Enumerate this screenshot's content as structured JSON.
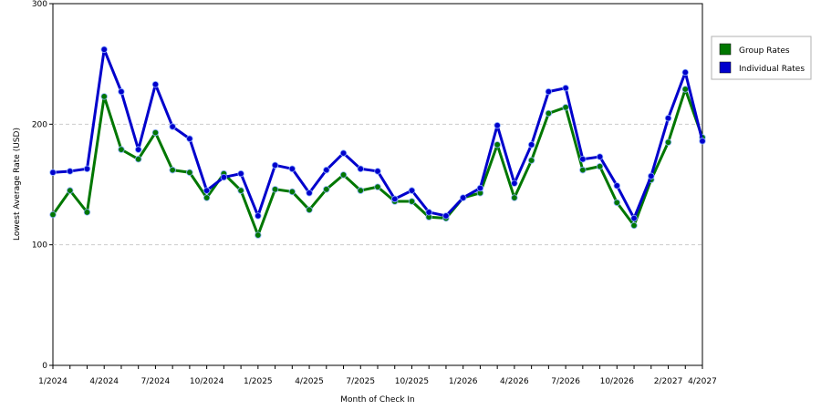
{
  "chart_data": {
    "type": "line",
    "title": "",
    "xlabel": "Month of Check In",
    "ylabel": "Lowest Average Rate (USD)",
    "ylim": [
      0,
      300
    ],
    "y_ticks": [
      0,
      100,
      200,
      300
    ],
    "grid": "horizontal dashed at 100 and 200",
    "legend_position": "top-right",
    "x_tick_labels": [
      {
        "index": 0,
        "label": "1/2024"
      },
      {
        "index": 3,
        "label": "4/2024"
      },
      {
        "index": 6,
        "label": "7/2024"
      },
      {
        "index": 9,
        "label": "10/2024"
      },
      {
        "index": 12,
        "label": "1/2025"
      },
      {
        "index": 15,
        "label": "4/2025"
      },
      {
        "index": 18,
        "label": "7/2025"
      },
      {
        "index": 21,
        "label": "10/2025"
      },
      {
        "index": 24,
        "label": "1/2026"
      },
      {
        "index": 27,
        "label": "4/2026"
      },
      {
        "index": 30,
        "label": "7/2026"
      },
      {
        "index": 33,
        "label": "10/2026"
      },
      {
        "index": 36,
        "label": "2/2027"
      },
      {
        "index": 38,
        "label": "4/2027"
      }
    ],
    "series": [
      {
        "name": "Group Rates",
        "color": "#007700",
        "values": [
          125,
          145,
          127,
          223,
          179,
          171,
          193,
          162,
          160,
          139,
          159,
          145,
          108,
          146,
          144,
          129,
          146,
          158,
          145,
          148,
          136,
          136,
          123,
          122,
          139,
          143,
          183,
          139,
          170,
          209,
          214,
          162,
          165,
          135,
          116,
          154,
          185,
          229,
          189
        ]
      },
      {
        "name": "Individual Rates",
        "color": "#0000cc",
        "values": [
          160,
          161,
          163,
          262,
          227,
          179,
          233,
          198,
          188,
          145,
          156,
          159,
          124,
          166,
          163,
          143,
          162,
          176,
          163,
          161,
          138,
          145,
          127,
          124,
          139,
          147,
          199,
          151,
          183,
          227,
          230,
          171,
          173,
          149,
          122,
          157,
          205,
          243,
          186
        ]
      }
    ]
  }
}
